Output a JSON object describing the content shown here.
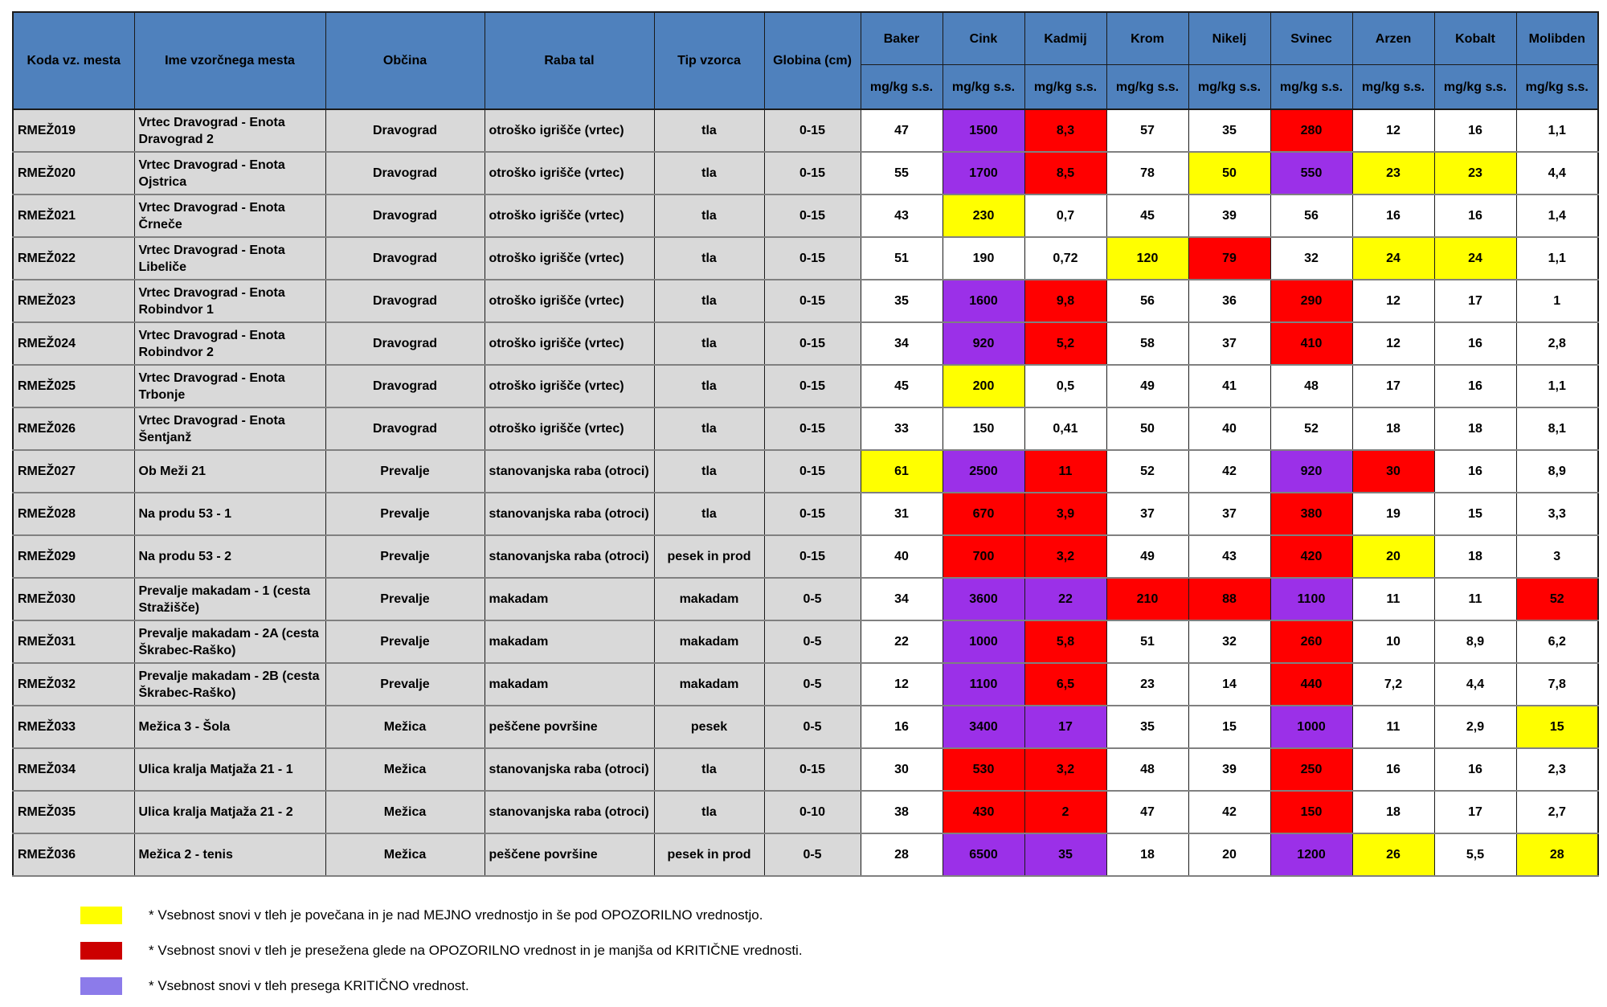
{
  "colors": {
    "header_blue": "#4F81BD",
    "row_gray": "#D9D9D9",
    "n": "#FFFFFF",
    "y": "#FFFF00",
    "r": "#FF0000",
    "p": "#9B30E8"
  },
  "table": {
    "headers": {
      "id_columns": [
        "Koda vz. mesta",
        "Ime vzorčnega mesta",
        "Občina",
        "Raba tal",
        "Tip vzorca",
        "Globina (cm)"
      ],
      "metal_columns": [
        "Baker",
        "Cink",
        "Kadmij",
        "Krom",
        "Nikelj",
        "Svinec",
        "Arzen",
        "Kobalt",
        "Molibden"
      ],
      "unit": "mg/kg s.s."
    },
    "rows": [
      {
        "code": "RMEŽ019",
        "name": "Vrtec Dravograd - Enota Dravograd 2",
        "municipality": "Dravograd",
        "land_use": "otroško igrišče (vrtec)",
        "sample_type": "tla",
        "depth": "0-15",
        "values": [
          {
            "v": "47",
            "s": "n"
          },
          {
            "v": "1500",
            "s": "p"
          },
          {
            "v": "8,3",
            "s": "r"
          },
          {
            "v": "57",
            "s": "n"
          },
          {
            "v": "35",
            "s": "n"
          },
          {
            "v": "280",
            "s": "r"
          },
          {
            "v": "12",
            "s": "n"
          },
          {
            "v": "16",
            "s": "n"
          },
          {
            "v": "1,1",
            "s": "n"
          }
        ]
      },
      {
        "code": "RMEŽ020",
        "name": "Vrtec Dravograd - Enota Ojstrica",
        "municipality": "Dravograd",
        "land_use": "otroško igrišče (vrtec)",
        "sample_type": "tla",
        "depth": "0-15",
        "values": [
          {
            "v": "55",
            "s": "n"
          },
          {
            "v": "1700",
            "s": "p"
          },
          {
            "v": "8,5",
            "s": "r"
          },
          {
            "v": "78",
            "s": "n"
          },
          {
            "v": "50",
            "s": "y"
          },
          {
            "v": "550",
            "s": "p"
          },
          {
            "v": "23",
            "s": "y"
          },
          {
            "v": "23",
            "s": "y"
          },
          {
            "v": "4,4",
            "s": "n"
          }
        ]
      },
      {
        "code": "RMEŽ021",
        "name": "Vrtec Dravograd - Enota Črneče",
        "municipality": "Dravograd",
        "land_use": "otroško igrišče (vrtec)",
        "sample_type": "tla",
        "depth": "0-15",
        "values": [
          {
            "v": "43",
            "s": "n"
          },
          {
            "v": "230",
            "s": "y"
          },
          {
            "v": "0,7",
            "s": "n"
          },
          {
            "v": "45",
            "s": "n"
          },
          {
            "v": "39",
            "s": "n"
          },
          {
            "v": "56",
            "s": "n"
          },
          {
            "v": "16",
            "s": "n"
          },
          {
            "v": "16",
            "s": "n"
          },
          {
            "v": "1,4",
            "s": "n"
          }
        ]
      },
      {
        "code": "RMEŽ022",
        "name": "Vrtec Dravograd - Enota Libeliče",
        "municipality": "Dravograd",
        "land_use": "otroško igrišče (vrtec)",
        "sample_type": "tla",
        "depth": "0-15",
        "values": [
          {
            "v": "51",
            "s": "n"
          },
          {
            "v": "190",
            "s": "n"
          },
          {
            "v": "0,72",
            "s": "n"
          },
          {
            "v": "120",
            "s": "y"
          },
          {
            "v": "79",
            "s": "r"
          },
          {
            "v": "32",
            "s": "n"
          },
          {
            "v": "24",
            "s": "y"
          },
          {
            "v": "24",
            "s": "y"
          },
          {
            "v": "1,1",
            "s": "n"
          }
        ]
      },
      {
        "code": "RMEŽ023",
        "name": "Vrtec Dravograd - Enota Robindvor 1",
        "municipality": "Dravograd",
        "land_use": "otroško igrišče (vrtec)",
        "sample_type": "tla",
        "depth": "0-15",
        "values": [
          {
            "v": "35",
            "s": "n"
          },
          {
            "v": "1600",
            "s": "p"
          },
          {
            "v": "9,8",
            "s": "r"
          },
          {
            "v": "56",
            "s": "n"
          },
          {
            "v": "36",
            "s": "n"
          },
          {
            "v": "290",
            "s": "r"
          },
          {
            "v": "12",
            "s": "n"
          },
          {
            "v": "17",
            "s": "n"
          },
          {
            "v": "1",
            "s": "n"
          }
        ]
      },
      {
        "code": "RMEŽ024",
        "name": "Vrtec Dravograd - Enota Robindvor 2",
        "municipality": "Dravograd",
        "land_use": "otroško igrišče (vrtec)",
        "sample_type": "tla",
        "depth": "0-15",
        "values": [
          {
            "v": "34",
            "s": "n"
          },
          {
            "v": "920",
            "s": "p"
          },
          {
            "v": "5,2",
            "s": "r"
          },
          {
            "v": "58",
            "s": "n"
          },
          {
            "v": "37",
            "s": "n"
          },
          {
            "v": "410",
            "s": "r"
          },
          {
            "v": "12",
            "s": "n"
          },
          {
            "v": "16",
            "s": "n"
          },
          {
            "v": "2,8",
            "s": "n"
          }
        ]
      },
      {
        "code": "RMEŽ025",
        "name": "Vrtec Dravograd - Enota Trbonje",
        "municipality": "Dravograd",
        "land_use": "otroško igrišče (vrtec)",
        "sample_type": "tla",
        "depth": "0-15",
        "values": [
          {
            "v": "45",
            "s": "n"
          },
          {
            "v": "200",
            "s": "y"
          },
          {
            "v": "0,5",
            "s": "n"
          },
          {
            "v": "49",
            "s": "n"
          },
          {
            "v": "41",
            "s": "n"
          },
          {
            "v": "48",
            "s": "n"
          },
          {
            "v": "17",
            "s": "n"
          },
          {
            "v": "16",
            "s": "n"
          },
          {
            "v": "1,1",
            "s": "n"
          }
        ]
      },
      {
        "code": "RMEŽ026",
        "name": "Vrtec Dravograd - Enota Šentjanž",
        "municipality": "Dravograd",
        "land_use": "otroško igrišče (vrtec)",
        "sample_type": "tla",
        "depth": "0-15",
        "values": [
          {
            "v": "33",
            "s": "n"
          },
          {
            "v": "150",
            "s": "n"
          },
          {
            "v": "0,41",
            "s": "n"
          },
          {
            "v": "50",
            "s": "n"
          },
          {
            "v": "40",
            "s": "n"
          },
          {
            "v": "52",
            "s": "n"
          },
          {
            "v": "18",
            "s": "n"
          },
          {
            "v": "18",
            "s": "n"
          },
          {
            "v": "8,1",
            "s": "n"
          }
        ]
      },
      {
        "code": "RMEŽ027",
        "name": "Ob Meži 21",
        "municipality": "Prevalje",
        "land_use": "stanovanjska raba (otroci)",
        "sample_type": "tla",
        "depth": "0-15",
        "values": [
          {
            "v": "61",
            "s": "y"
          },
          {
            "v": "2500",
            "s": "p"
          },
          {
            "v": "11",
            "s": "r"
          },
          {
            "v": "52",
            "s": "n"
          },
          {
            "v": "42",
            "s": "n"
          },
          {
            "v": "920",
            "s": "p"
          },
          {
            "v": "30",
            "s": "r"
          },
          {
            "v": "16",
            "s": "n"
          },
          {
            "v": "8,9",
            "s": "n"
          }
        ]
      },
      {
        "code": "RMEŽ028",
        "name": "Na produ 53 - 1",
        "municipality": "Prevalje",
        "land_use": "stanovanjska raba (otroci)",
        "sample_type": "tla",
        "depth": "0-15",
        "values": [
          {
            "v": "31",
            "s": "n"
          },
          {
            "v": "670",
            "s": "r"
          },
          {
            "v": "3,9",
            "s": "r"
          },
          {
            "v": "37",
            "s": "n"
          },
          {
            "v": "37",
            "s": "n"
          },
          {
            "v": "380",
            "s": "r"
          },
          {
            "v": "19",
            "s": "n"
          },
          {
            "v": "15",
            "s": "n"
          },
          {
            "v": "3,3",
            "s": "n"
          }
        ]
      },
      {
        "code": "RMEŽ029",
        "name": "Na produ 53 - 2",
        "municipality": "Prevalje",
        "land_use": "stanovanjska raba (otroci)",
        "sample_type": "pesek in prod",
        "depth": "0-15",
        "values": [
          {
            "v": "40",
            "s": "n"
          },
          {
            "v": "700",
            "s": "r"
          },
          {
            "v": "3,2",
            "s": "r"
          },
          {
            "v": "49",
            "s": "n"
          },
          {
            "v": "43",
            "s": "n"
          },
          {
            "v": "420",
            "s": "r"
          },
          {
            "v": "20",
            "s": "y"
          },
          {
            "v": "18",
            "s": "n"
          },
          {
            "v": "3",
            "s": "n"
          }
        ]
      },
      {
        "code": "RMEŽ030",
        "name": "Prevalje makadam - 1 (cesta Stražišče)",
        "municipality": "Prevalje",
        "land_use": "makadam",
        "sample_type": "makadam",
        "depth": "0-5",
        "values": [
          {
            "v": "34",
            "s": "n"
          },
          {
            "v": "3600",
            "s": "p"
          },
          {
            "v": "22",
            "s": "p"
          },
          {
            "v": "210",
            "s": "r"
          },
          {
            "v": "88",
            "s": "r"
          },
          {
            "v": "1100",
            "s": "p"
          },
          {
            "v": "11",
            "s": "n"
          },
          {
            "v": "11",
            "s": "n"
          },
          {
            "v": "52",
            "s": "r"
          }
        ]
      },
      {
        "code": "RMEŽ031",
        "name": "Prevalje makadam - 2A (cesta Škrabec-Raško)",
        "municipality": "Prevalje",
        "land_use": "makadam",
        "sample_type": "makadam",
        "depth": "0-5",
        "values": [
          {
            "v": "22",
            "s": "n"
          },
          {
            "v": "1000",
            "s": "p"
          },
          {
            "v": "5,8",
            "s": "r"
          },
          {
            "v": "51",
            "s": "n"
          },
          {
            "v": "32",
            "s": "n"
          },
          {
            "v": "260",
            "s": "r"
          },
          {
            "v": "10",
            "s": "n"
          },
          {
            "v": "8,9",
            "s": "n"
          },
          {
            "v": "6,2",
            "s": "n"
          }
        ]
      },
      {
        "code": "RMEŽ032",
        "name": "Prevalje makadam - 2B (cesta Škrabec-Raško)",
        "municipality": "Prevalje",
        "land_use": "makadam",
        "sample_type": "makadam",
        "depth": "0-5",
        "values": [
          {
            "v": "12",
            "s": "n"
          },
          {
            "v": "1100",
            "s": "p"
          },
          {
            "v": "6,5",
            "s": "r"
          },
          {
            "v": "23",
            "s": "n"
          },
          {
            "v": "14",
            "s": "n"
          },
          {
            "v": "440",
            "s": "r"
          },
          {
            "v": "7,2",
            "s": "n"
          },
          {
            "v": "4,4",
            "s": "n"
          },
          {
            "v": "7,8",
            "s": "n"
          }
        ]
      },
      {
        "code": "RMEŽ033",
        "name": "Mežica 3 - Šola",
        "municipality": "Mežica",
        "land_use": "peščene površine",
        "sample_type": "pesek",
        "depth": "0-5",
        "values": [
          {
            "v": "16",
            "s": "n"
          },
          {
            "v": "3400",
            "s": "p"
          },
          {
            "v": "17",
            "s": "p"
          },
          {
            "v": "35",
            "s": "n"
          },
          {
            "v": "15",
            "s": "n"
          },
          {
            "v": "1000",
            "s": "p"
          },
          {
            "v": "11",
            "s": "n"
          },
          {
            "v": "2,9",
            "s": "n"
          },
          {
            "v": "15",
            "s": "y"
          }
        ]
      },
      {
        "code": "RMEŽ034",
        "name": "Ulica kralja Matjaža 21 - 1",
        "municipality": "Mežica",
        "land_use": "stanovanjska raba (otroci)",
        "sample_type": "tla",
        "depth": "0-15",
        "values": [
          {
            "v": "30",
            "s": "n"
          },
          {
            "v": "530",
            "s": "r"
          },
          {
            "v": "3,2",
            "s": "r"
          },
          {
            "v": "48",
            "s": "n"
          },
          {
            "v": "39",
            "s": "n"
          },
          {
            "v": "250",
            "s": "r"
          },
          {
            "v": "16",
            "s": "n"
          },
          {
            "v": "16",
            "s": "n"
          },
          {
            "v": "2,3",
            "s": "n"
          }
        ]
      },
      {
        "code": "RMEŽ035",
        "name": "Ulica kralja Matjaža 21 - 2",
        "municipality": "Mežica",
        "land_use": "stanovanjska raba (otroci)",
        "sample_type": "tla",
        "depth": "0-10",
        "values": [
          {
            "v": "38",
            "s": "n"
          },
          {
            "v": "430",
            "s": "r"
          },
          {
            "v": "2",
            "s": "r"
          },
          {
            "v": "47",
            "s": "n"
          },
          {
            "v": "42",
            "s": "n"
          },
          {
            "v": "150",
            "s": "r"
          },
          {
            "v": "18",
            "s": "n"
          },
          {
            "v": "17",
            "s": "n"
          },
          {
            "v": "2,7",
            "s": "n"
          }
        ]
      },
      {
        "code": "RMEŽ036",
        "name": "Mežica 2 - tenis",
        "municipality": "Mežica",
        "land_use": "peščene površine",
        "sample_type": "pesek in prod",
        "depth": "0-5",
        "values": [
          {
            "v": "28",
            "s": "n"
          },
          {
            "v": "6500",
            "s": "p"
          },
          {
            "v": "35",
            "s": "p"
          },
          {
            "v": "18",
            "s": "n"
          },
          {
            "v": "20",
            "s": "n"
          },
          {
            "v": "1200",
            "s": "p"
          },
          {
            "v": "26",
            "s": "y"
          },
          {
            "v": "5,5",
            "s": "n"
          },
          {
            "v": "28",
            "s": "y"
          }
        ]
      }
    ]
  },
  "legend": {
    "items": [
      {
        "key": "above-limit-value",
        "swatch_color": "#FFFF00",
        "text": "* Vsebnost snovi v tleh je povečana in je nad MEJNO vrednostjo in še pod OPOZORILNO vrednostjo."
      },
      {
        "key": "above-warning-value",
        "swatch_color": "#CC0000",
        "text": "* Vsebnost snovi v tleh je presežena glede na OPOZORILNO vrednost in je manjša od KRITIČNE vrednosti."
      },
      {
        "key": "above-critical-value",
        "swatch_color": "#8C7BEA",
        "text": "* Vsebnost snovi v tleh presega KRITIČNO vrednost."
      }
    ]
  }
}
